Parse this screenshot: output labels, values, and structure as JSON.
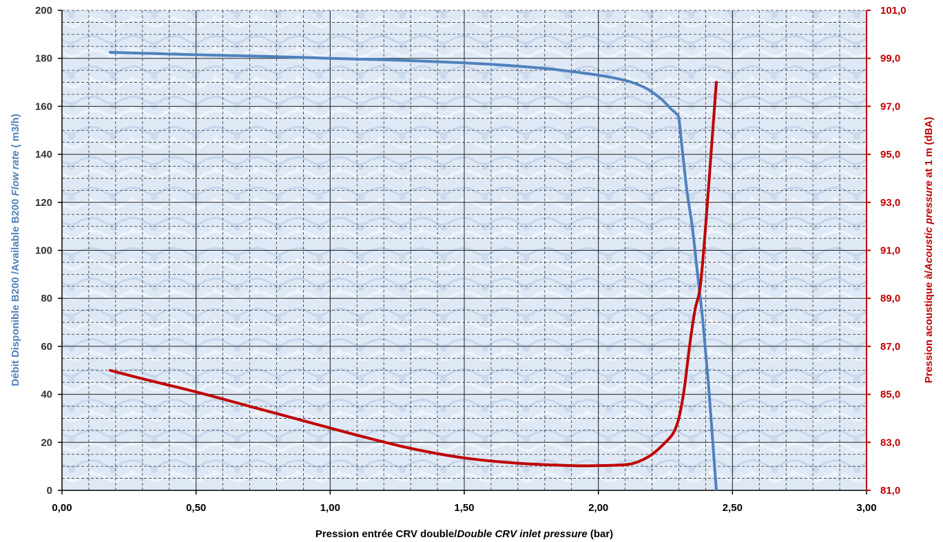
{
  "chart_data": {
    "type": "line",
    "title": "",
    "xlabel": {
      "fr": "Pression entrée CRV double/",
      "en": "Double CRV inlet pressure",
      "unit": " (bar)"
    },
    "ylabel_left": {
      "fr": "Débit Disponible  B200 /Available B200 ",
      "en": "Flow rate",
      "unit": " ( m3/h)"
    },
    "ylabel_right": {
      "fr": "Pression acoustique à/",
      "en": "Acoustic pressure",
      "unit": "  at 1 m (dBA)"
    },
    "xlim": [
      0,
      3
    ],
    "ylim_left": [
      0,
      200
    ],
    "ylim_right": [
      81,
      101
    ],
    "x_ticks": [
      "0,00",
      "0,50",
      "1,00",
      "1,50",
      "2,00",
      "2,50",
      "3,00"
    ],
    "y_ticks_left": [
      "0",
      "20",
      "40",
      "60",
      "80",
      "100",
      "120",
      "140",
      "160",
      "180",
      "200"
    ],
    "y_ticks_right": [
      "81,0",
      "83,0",
      "85,0",
      "87,0",
      "89,0",
      "91,0",
      "93,0",
      "95,0",
      "97,0",
      "99,0",
      "101,0"
    ],
    "grid": true,
    "legend": "none",
    "series": [
      {
        "axis": "left",
        "color": "#4f81bd",
        "x": [
          0.18,
          0.5,
          0.8,
          1.0,
          1.2,
          1.4,
          1.6,
          1.8,
          1.9,
          2.0,
          2.06,
          2.12,
          2.17,
          2.2,
          2.24,
          2.27,
          2.29,
          2.3,
          2.31,
          2.33,
          2.35,
          2.37,
          2.39,
          2.41,
          2.43,
          2.44
        ],
        "values": [
          182.5,
          181.5,
          180.7,
          180.0,
          179.4,
          178.6,
          177.5,
          175.8,
          174.5,
          173.0,
          171.8,
          170.2,
          168.0,
          166.0,
          162.5,
          159.0,
          157.0,
          155.0,
          145.0,
          125.0,
          110.0,
          90.0,
          70.0,
          45.0,
          15.0,
          0.0
        ]
      },
      {
        "axis": "right",
        "color": "#c00000",
        "x": [
          0.18,
          0.3,
          0.5,
          0.7,
          0.9,
          1.1,
          1.3,
          1.5,
          1.7,
          1.9,
          2.0,
          2.1,
          2.15,
          2.2,
          2.25,
          2.28,
          2.3,
          2.32,
          2.34,
          2.36,
          2.38,
          2.4,
          2.42,
          2.44
        ],
        "values": [
          86.0,
          85.65,
          85.1,
          84.5,
          83.9,
          83.3,
          82.75,
          82.35,
          82.13,
          82.03,
          82.03,
          82.07,
          82.2,
          82.5,
          83.0,
          83.4,
          84.0,
          85.2,
          87.0,
          88.5,
          89.5,
          92.0,
          95.0,
          98.0
        ]
      }
    ]
  }
}
